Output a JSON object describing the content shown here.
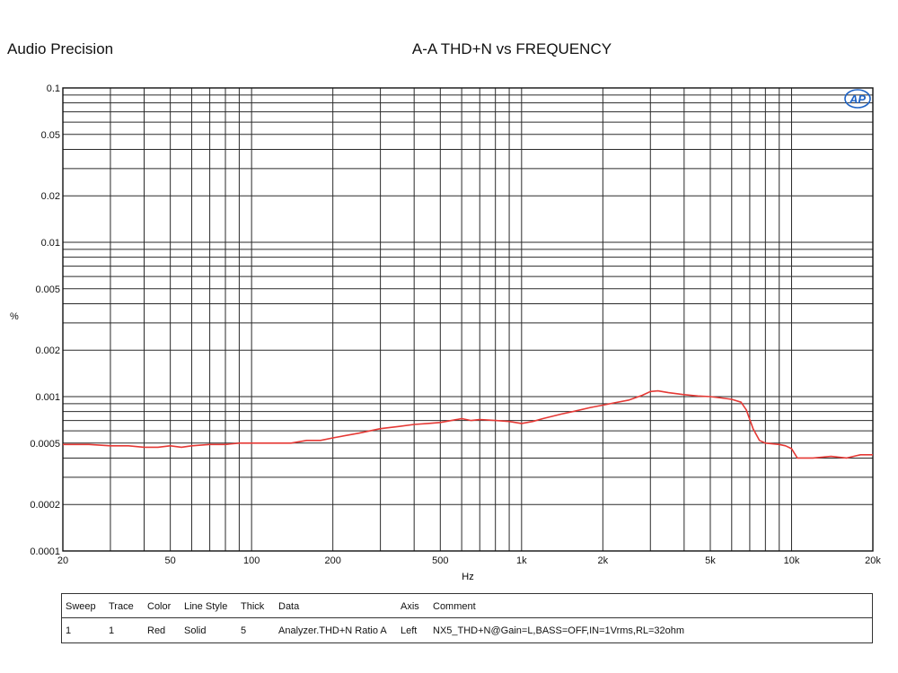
{
  "header": {
    "brand": "Audio Precision",
    "title": "A-A THD+N vs FREQUENCY",
    "logo_text": "AP"
  },
  "colors": {
    "trace": "#e53935",
    "grid": "#2a2a2a"
  },
  "chart_data": {
    "type": "line",
    "title": "A-A THD+N vs FREQUENCY",
    "xlabel": "Hz",
    "ylabel": "%",
    "x_scale": "log",
    "y_scale": "log",
    "xlim": [
      20,
      20000
    ],
    "ylim": [
      0.0001,
      0.1
    ],
    "grid": true,
    "x_ticks": [
      {
        "value": 20,
        "label": "20"
      },
      {
        "value": 50,
        "label": "50"
      },
      {
        "value": 100,
        "label": "100"
      },
      {
        "value": 200,
        "label": "200"
      },
      {
        "value": 500,
        "label": "500"
      },
      {
        "value": 1000,
        "label": "1k"
      },
      {
        "value": 2000,
        "label": "2k"
      },
      {
        "value": 5000,
        "label": "5k"
      },
      {
        "value": 10000,
        "label": "10k"
      },
      {
        "value": 20000,
        "label": "20k"
      }
    ],
    "y_ticks": [
      {
        "value": 0.1,
        "label": "0.1"
      },
      {
        "value": 0.05,
        "label": "0.05"
      },
      {
        "value": 0.02,
        "label": "0.02"
      },
      {
        "value": 0.01,
        "label": "0.01"
      },
      {
        "value": 0.005,
        "label": "0.005"
      },
      {
        "value": 0.002,
        "label": "0.002"
      },
      {
        "value": 0.001,
        "label": "0.001"
      },
      {
        "value": 0.0005,
        "label": "0.0005"
      },
      {
        "value": 0.0002,
        "label": "0.0002"
      },
      {
        "value": 0.0001,
        "label": "0.0001"
      }
    ],
    "series": [
      {
        "x": [
          20,
          25,
          30,
          35,
          40,
          45,
          50,
          55,
          60,
          70,
          80,
          90,
          100,
          120,
          140,
          160,
          180,
          200,
          250,
          300,
          350,
          400,
          450,
          500,
          550,
          600,
          650,
          700,
          800,
          900,
          1000,
          1100,
          1200,
          1400,
          1600,
          1800,
          2000,
          2200,
          2500,
          2800,
          3000,
          3200,
          3500,
          4000,
          4500,
          5000,
          5500,
          6000,
          6500,
          6800,
          7200,
          7600,
          8000,
          9000,
          9500,
          10000,
          10500,
          11000,
          12000,
          14000,
          16000,
          18000,
          20000
        ],
        "y": [
          0.00049,
          0.00049,
          0.00048,
          0.00048,
          0.00047,
          0.00047,
          0.00048,
          0.00047,
          0.00048,
          0.00049,
          0.00049,
          0.0005,
          0.0005,
          0.0005,
          0.0005,
          0.00052,
          0.00052,
          0.00054,
          0.00058,
          0.00062,
          0.00064,
          0.00066,
          0.00067,
          0.00068,
          0.0007,
          0.00072,
          0.0007,
          0.00071,
          0.0007,
          0.00069,
          0.00067,
          0.00069,
          0.00072,
          0.00077,
          0.00081,
          0.00085,
          0.00088,
          0.00091,
          0.00095,
          0.00102,
          0.00108,
          0.00109,
          0.00106,
          0.00103,
          0.00101,
          0.001,
          0.00098,
          0.00096,
          0.00092,
          0.00082,
          0.00062,
          0.00052,
          0.0005,
          0.00049,
          0.00048,
          0.00046,
          0.0004,
          0.0004,
          0.0004,
          0.00041,
          0.0004,
          0.00042,
          0.00042
        ]
      }
    ]
  },
  "legend_table": {
    "headers": [
      "Sweep",
      "Trace",
      "Color",
      "Line Style",
      "Thick",
      "Data",
      "Axis",
      "Comment"
    ],
    "rows": [
      [
        "1",
        "1",
        "Red",
        "Solid",
        "5",
        "Analyzer.THD+N Ratio A",
        "Left",
        "NX5_THD+N@Gain=L,BASS=OFF,IN=1Vrms,RL=32ohm"
      ]
    ]
  }
}
